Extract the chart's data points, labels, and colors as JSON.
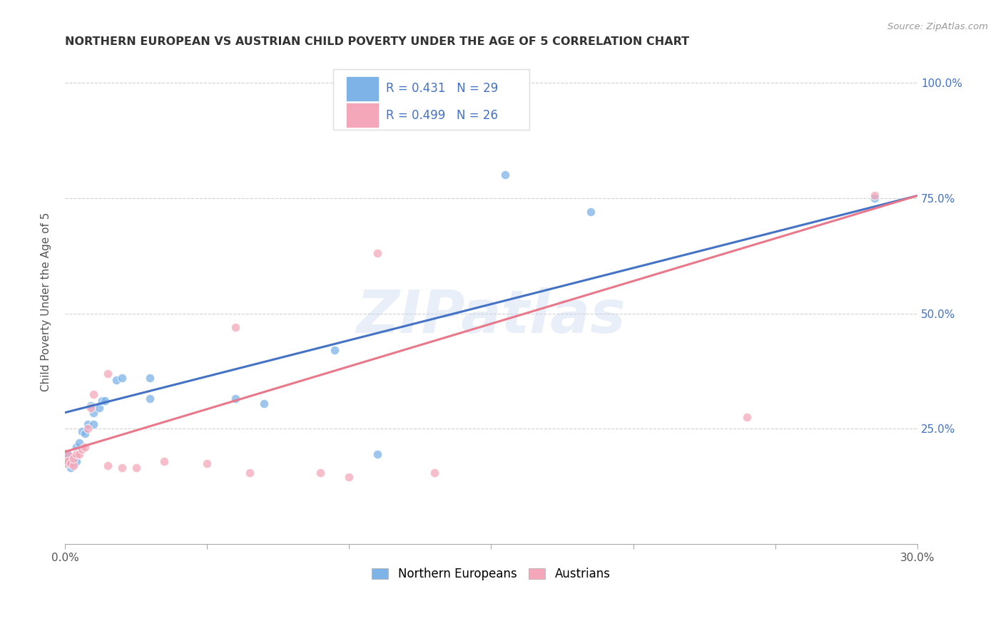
{
  "title": "NORTHERN EUROPEAN VS AUSTRIAN CHILD POVERTY UNDER THE AGE OF 5 CORRELATION CHART",
  "source": "Source: ZipAtlas.com",
  "ylabel": "Child Poverty Under the Age of 5",
  "ytick_vals": [
    0.0,
    0.25,
    0.5,
    0.75,
    1.0
  ],
  "ytick_labels": [
    "",
    "25.0%",
    "50.0%",
    "75.0%",
    "100.0%"
  ],
  "xmin": 0.0,
  "xmax": 0.3,
  "ymin": 0.0,
  "ymax": 1.05,
  "watermark": "ZIPatlas",
  "legend_blue_label": "Northern Europeans",
  "legend_pink_label": "Austrians",
  "legend_blue_R": "R = 0.431",
  "legend_blue_N": "N = 29",
  "legend_pink_R": "R = 0.499",
  "legend_pink_N": "N = 26",
  "blue_color": "#7EB3E8",
  "pink_color": "#F4A7B9",
  "blue_line_color": "#4472C4",
  "pink_line_color": "#E8788A",
  "northern_europeans": [
    [
      0.0,
      0.185
    ],
    [
      0.001,
      0.175
    ],
    [
      0.002,
      0.175
    ],
    [
      0.002,
      0.165
    ],
    [
      0.003,
      0.175
    ],
    [
      0.003,
      0.185
    ],
    [
      0.004,
      0.18
    ],
    [
      0.004,
      0.21
    ],
    [
      0.005,
      0.22
    ],
    [
      0.006,
      0.245
    ],
    [
      0.007,
      0.24
    ],
    [
      0.008,
      0.26
    ],
    [
      0.009,
      0.3
    ],
    [
      0.01,
      0.26
    ],
    [
      0.01,
      0.285
    ],
    [
      0.012,
      0.295
    ],
    [
      0.013,
      0.31
    ],
    [
      0.014,
      0.31
    ],
    [
      0.018,
      0.355
    ],
    [
      0.02,
      0.36
    ],
    [
      0.03,
      0.36
    ],
    [
      0.03,
      0.315
    ],
    [
      0.06,
      0.315
    ],
    [
      0.07,
      0.305
    ],
    [
      0.095,
      0.42
    ],
    [
      0.11,
      0.195
    ],
    [
      0.155,
      0.8
    ],
    [
      0.185,
      0.72
    ],
    [
      0.285,
      0.75
    ]
  ],
  "austrians": [
    [
      0.0,
      0.185
    ],
    [
      0.001,
      0.18
    ],
    [
      0.002,
      0.175
    ],
    [
      0.003,
      0.17
    ],
    [
      0.003,
      0.185
    ],
    [
      0.004,
      0.195
    ],
    [
      0.005,
      0.195
    ],
    [
      0.006,
      0.205
    ],
    [
      0.007,
      0.21
    ],
    [
      0.008,
      0.25
    ],
    [
      0.009,
      0.295
    ],
    [
      0.01,
      0.325
    ],
    [
      0.015,
      0.37
    ],
    [
      0.015,
      0.17
    ],
    [
      0.02,
      0.165
    ],
    [
      0.025,
      0.165
    ],
    [
      0.035,
      0.18
    ],
    [
      0.05,
      0.175
    ],
    [
      0.06,
      0.47
    ],
    [
      0.065,
      0.155
    ],
    [
      0.09,
      0.155
    ],
    [
      0.1,
      0.145
    ],
    [
      0.11,
      0.63
    ],
    [
      0.13,
      0.155
    ],
    [
      0.24,
      0.275
    ],
    [
      0.285,
      0.755
    ]
  ],
  "blue_line": [
    [
      0.0,
      0.285
    ],
    [
      0.3,
      0.755
    ]
  ],
  "pink_line": [
    [
      0.0,
      0.2
    ],
    [
      0.3,
      0.755
    ]
  ],
  "xtick_positions": [
    0.0,
    0.05,
    0.1,
    0.15,
    0.2,
    0.25,
    0.3
  ],
  "xtick_show_labels": [
    true,
    false,
    false,
    false,
    false,
    false,
    true
  ],
  "xtick_labels_show": [
    "0.0%",
    "",
    "",
    "",
    "",
    "",
    "30.0%"
  ]
}
